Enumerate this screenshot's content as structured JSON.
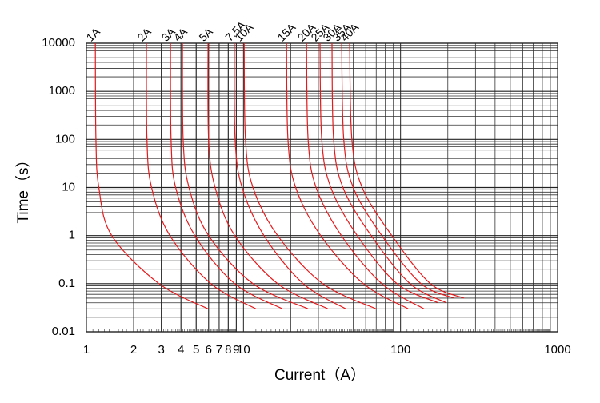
{
  "chart_data": {
    "type": "line",
    "x_label": "Current（A）",
    "y_label": "Time（s）",
    "log_x": true,
    "log_y": true,
    "grid": true,
    "minor_grid": true,
    "xlim": [
      1,
      1000
    ],
    "ylim": [
      0.01,
      10000
    ],
    "xticks": [
      1,
      2,
      3,
      4,
      5,
      6,
      7,
      8,
      9,
      10,
      100,
      1000
    ],
    "yticks": [
      0.01,
      0.1,
      1,
      10,
      100,
      1000,
      10000
    ],
    "series": [
      {
        "name": "1A",
        "color": "#e41a1c",
        "x": [
          1.14,
          1.15,
          1.2,
          1.45,
          2.9,
          5.95
        ],
        "values": [
          10000,
          100,
          10,
          1,
          0.1,
          0.03
        ]
      },
      {
        "name": "2A",
        "color": "#e41a1c",
        "x": [
          2.41,
          2.43,
          2.6,
          3.4,
          6.2,
          12.0
        ],
        "values": [
          10000,
          100,
          10,
          1,
          0.1,
          0.03
        ]
      },
      {
        "name": "3A",
        "color": "#e41a1c",
        "x": [
          3.43,
          3.46,
          3.7,
          4.9,
          8.8,
          17.7
        ],
        "values": [
          10000,
          100,
          10,
          1,
          0.1,
          0.03
        ]
      },
      {
        "name": "4A",
        "color": "#e41a1c",
        "x": [
          4.09,
          4.13,
          4.5,
          6.0,
          11.5,
          25.8
        ],
        "values": [
          10000,
          100,
          10,
          1,
          0.1,
          0.03
        ]
      },
      {
        "name": "5A",
        "color": "#e41a1c",
        "x": [
          5.95,
          6.0,
          6.6,
          8.8,
          16.5,
          34.5
        ],
        "values": [
          10000,
          100,
          10,
          1,
          0.1,
          0.03
        ]
      },
      {
        "name": "7.5A",
        "color": "#e41a1c",
        "x": [
          8.75,
          8.85,
          9.8,
          13.5,
          24,
          44.8
        ],
        "values": [
          10000,
          100,
          10,
          1,
          0.1,
          0.03
        ]
      },
      {
        "name": "10A",
        "color": "#e41a1c",
        "x": [
          10.1,
          10.3,
          11.5,
          16.5,
          32,
          69.8
        ],
        "values": [
          10000,
          100,
          10,
          1,
          0.1,
          0.03
        ]
      },
      {
        "name": "15A",
        "color": "#e41a1c",
        "x": [
          18.8,
          19.2,
          21.5,
          31,
          58,
          112
        ],
        "values": [
          10000,
          100,
          10,
          1,
          0.1,
          0.03
        ]
      },
      {
        "name": "20A",
        "color": "#e41a1c",
        "x": [
          25.2,
          25.8,
          29,
          42,
          76,
          141
        ],
        "values": [
          10000,
          100,
          10,
          1,
          0.1,
          0.03
        ]
      },
      {
        "name": "25A",
        "color": "#e41a1c",
        "x": [
          30.7,
          31.5,
          36,
          53,
          95,
          174
        ],
        "values": [
          10000,
          100,
          10,
          1,
          0.1,
          0.04
        ]
      },
      {
        "name": "30A",
        "color": "#e41a1c",
        "x": [
          36.6,
          37.5,
          43,
          65,
          115,
          196
        ],
        "values": [
          10000,
          100,
          10,
          1,
          0.1,
          0.04
        ]
      },
      {
        "name": "35A",
        "color": "#e41a1c",
        "x": [
          42.2,
          43.5,
          50,
          76,
          135,
          220
        ],
        "values": [
          10000,
          100,
          10,
          1,
          0.1,
          0.05
        ]
      },
      {
        "name": "40A",
        "color": "#e41a1c",
        "x": [
          47.4,
          49,
          57,
          88,
          155,
          254
        ],
        "values": [
          10000,
          100,
          10,
          1,
          0.1,
          0.05
        ]
      }
    ]
  }
}
